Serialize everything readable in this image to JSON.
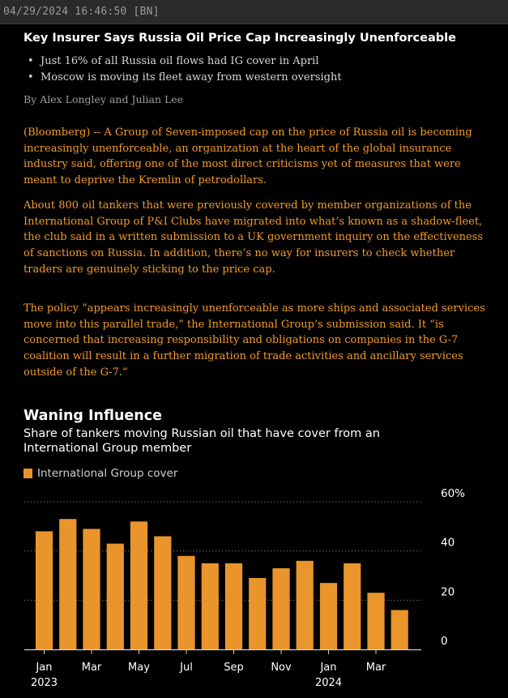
{
  "header": {
    "timestamp": "04/29/2024 16:46:50 [BN]"
  },
  "article": {
    "headline": "Key Insurer Says Russia Oil Price Cap Increasingly Unenforceable",
    "bullets": [
      "Just 16% of all Russia oil flows had IG cover in April",
      "Moscow is moving its fleet away from western oversight"
    ],
    "byline": "By Alex Longley and Julian Lee",
    "paragraphs": [
      "(Bloomberg) -- A Group of Seven-imposed cap on the price of Russia oil is becoming increasingly unenforceable, an organization at the heart of the global insurance industry said, offering one of the most direct criticisms yet of measures that were meant to deprive the Kremlin of petrodollars.",
      "About 800 oil tankers that were previously covered by member organizations of the International Group of P&I Clubs have migrated into what’s known as a shadow-fleet, the club said in a written submission to a UK government inquiry on the effectiveness of sanctions on Russia. In addition, there’s no way for insurers to check whether traders are genuinely sticking to the price cap.",
      "The policy “appears increasingly unenforceable as more ships and associated services move into this parallel trade,” the International Group’s submission said. It “is concerned that increasing responsibility and obligations on companies in the G-7 coalition will result in a further migration of trade activities and ancillary services outside of the G-7.”"
    ]
  },
  "colors": {
    "accent": "#f39b2b",
    "bar": "#e9952b",
    "background": "#000000",
    "header_bar": "#2a2a2a"
  },
  "chart_data": {
    "type": "bar",
    "title": "Waning Influence",
    "subtitle": "Share of tankers moving Russian oil that have cover from an International Group member",
    "legend": [
      "International Group cover"
    ],
    "x": [
      "2023-01",
      "2023-02",
      "2023-03",
      "2023-04",
      "2023-05",
      "2023-06",
      "2023-07",
      "2023-08",
      "2023-09",
      "2023-10",
      "2023-11",
      "2023-12",
      "2024-01",
      "2024-02",
      "2024-03",
      "2024-04"
    ],
    "values": [
      48,
      53,
      49,
      43,
      52,
      46,
      38,
      35,
      35,
      29,
      33,
      36,
      27,
      35,
      23,
      16
    ],
    "ylim": [
      0,
      60
    ],
    "y_ticks": [
      "0",
      "20",
      "40",
      "60%"
    ],
    "x_ticks": [
      {
        "month": "Jan",
        "year": "2023",
        "index": 0
      },
      {
        "month": "Mar",
        "year": "",
        "index": 2
      },
      {
        "month": "May",
        "year": "",
        "index": 4
      },
      {
        "month": "Jul",
        "year": "",
        "index": 6
      },
      {
        "month": "Sep",
        "year": "",
        "index": 8
      },
      {
        "month": "Nov",
        "year": "",
        "index": 10
      },
      {
        "month": "Jan",
        "year": "2024",
        "index": 12
      },
      {
        "month": "Mar",
        "year": "",
        "index": 14
      }
    ],
    "grid": true,
    "legend_position": "top-left"
  }
}
